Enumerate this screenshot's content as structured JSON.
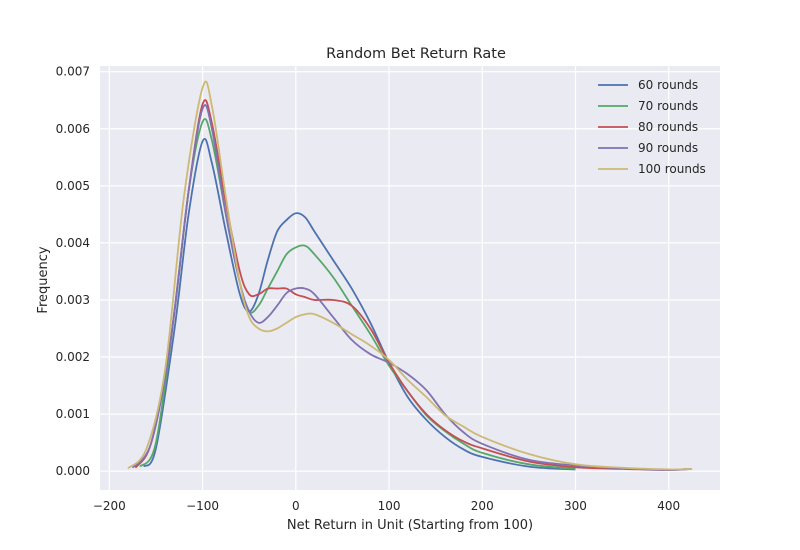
{
  "chart_data": {
    "type": "line",
    "title": "Random Bet Return Rate",
    "xlabel": "Net Return in Unit (Starting from 100)",
    "ylabel": "Frequency",
    "xlim": [
      -210,
      455
    ],
    "ylim": [
      -0.00033,
      0.0071
    ],
    "xticks": [
      -200,
      -100,
      0,
      100,
      200,
      300,
      400
    ],
    "xtick_labels": [
      "−200",
      "−100",
      "0",
      "100",
      "200",
      "300",
      "400"
    ],
    "yticks": [
      0.0,
      0.001,
      0.002,
      0.003,
      0.004,
      0.005,
      0.006,
      0.007
    ],
    "ytick_labels": [
      "0.000",
      "0.001",
      "0.002",
      "0.003",
      "0.004",
      "0.005",
      "0.006",
      "0.007"
    ],
    "grid": true,
    "legend_position": "top-right",
    "series": [
      {
        "name": "60 rounds",
        "color": "#4c72b0",
        "x": [
          -163,
          -150,
          -130,
          -115,
          -100,
          -90,
          -75,
          -60,
          -50,
          -40,
          -30,
          -20,
          -10,
          0,
          10,
          20,
          40,
          60,
          80,
          100,
          120,
          140,
          160,
          180,
          200,
          250,
          300
        ],
        "y": [
          8e-05,
          0.0004,
          0.0025,
          0.0045,
          0.00578,
          0.0054,
          0.0042,
          0.0031,
          0.0028,
          0.0031,
          0.0037,
          0.0042,
          0.0044,
          0.00452,
          0.00445,
          0.0042,
          0.0037,
          0.0032,
          0.0026,
          0.0019,
          0.0013,
          0.0009,
          0.0006,
          0.00038,
          0.00025,
          8e-05,
          3e-05
        ]
      },
      {
        "name": "70 rounds",
        "color": "#55a868",
        "x": [
          -167,
          -150,
          -130,
          -115,
          -100,
          -90,
          -75,
          -60,
          -50,
          -40,
          -30,
          -20,
          -10,
          0,
          10,
          20,
          40,
          60,
          80,
          100,
          120,
          140,
          160,
          180,
          200,
          250,
          300
        ],
        "y": [
          8e-05,
          0.0005,
          0.0028,
          0.0049,
          0.00612,
          0.0058,
          0.0045,
          0.0033,
          0.0028,
          0.0029,
          0.0032,
          0.0035,
          0.0038,
          0.00392,
          0.00395,
          0.0038,
          0.0034,
          0.0029,
          0.0024,
          0.00185,
          0.0014,
          0.00098,
          0.0007,
          0.00048,
          0.00032,
          0.00012,
          4e-05
        ]
      },
      {
        "name": "80 rounds",
        "color": "#c44e52",
        "x": [
          -172,
          -155,
          -135,
          -115,
          -100,
          -90,
          -75,
          -60,
          -50,
          -40,
          -30,
          -20,
          -10,
          0,
          10,
          20,
          40,
          60,
          80,
          100,
          120,
          140,
          160,
          180,
          200,
          250,
          300,
          350,
          400,
          420
        ],
        "y": [
          6e-05,
          0.0005,
          0.0022,
          0.0049,
          0.00643,
          0.0061,
          0.0047,
          0.0035,
          0.0031,
          0.0031,
          0.0032,
          0.0032,
          0.0032,
          0.0031,
          0.00305,
          0.003,
          0.003,
          0.0029,
          0.0025,
          0.0019,
          0.0014,
          0.001,
          0.00072,
          0.00052,
          0.0004,
          0.00017,
          7e-05,
          4e-05,
          2e-05,
          4e-05
        ]
      },
      {
        "name": "90 rounds",
        "color": "#8172b2",
        "x": [
          -175,
          -155,
          -135,
          -115,
          -100,
          -90,
          -75,
          -60,
          -50,
          -40,
          -30,
          -20,
          -10,
          0,
          10,
          20,
          40,
          60,
          80,
          100,
          120,
          140,
          160,
          180,
          200,
          250,
          300,
          350,
          400,
          425
        ],
        "y": [
          6e-05,
          0.0005,
          0.0022,
          0.0049,
          0.00635,
          0.006,
          0.0045,
          0.0033,
          0.0028,
          0.0026,
          0.0027,
          0.0029,
          0.00312,
          0.0032,
          0.0032,
          0.0031,
          0.0027,
          0.0023,
          0.00205,
          0.0019,
          0.0017,
          0.00142,
          0.001,
          0.00068,
          0.00048,
          0.0002,
          0.0001,
          5e-05,
          2e-05,
          4e-05
        ]
      },
      {
        "name": "100 rounds",
        "color": "#ccb974",
        "x": [
          -180,
          -160,
          -140,
          -120,
          -100,
          -90,
          -75,
          -60,
          -50,
          -40,
          -30,
          -20,
          -10,
          0,
          10,
          20,
          40,
          60,
          80,
          100,
          120,
          140,
          160,
          180,
          200,
          250,
          300,
          350,
          400,
          425
        ],
        "y": [
          5e-05,
          0.0004,
          0.0018,
          0.0048,
          0.00672,
          0.0064,
          0.0048,
          0.0033,
          0.0027,
          0.0025,
          0.00245,
          0.0025,
          0.0026,
          0.0027,
          0.00275,
          0.00275,
          0.0026,
          0.0024,
          0.0022,
          0.00195,
          0.0016,
          0.0013,
          0.00098,
          0.00078,
          0.0006,
          0.0003,
          0.00012,
          6e-05,
          3e-05,
          4e-05
        ]
      }
    ]
  }
}
